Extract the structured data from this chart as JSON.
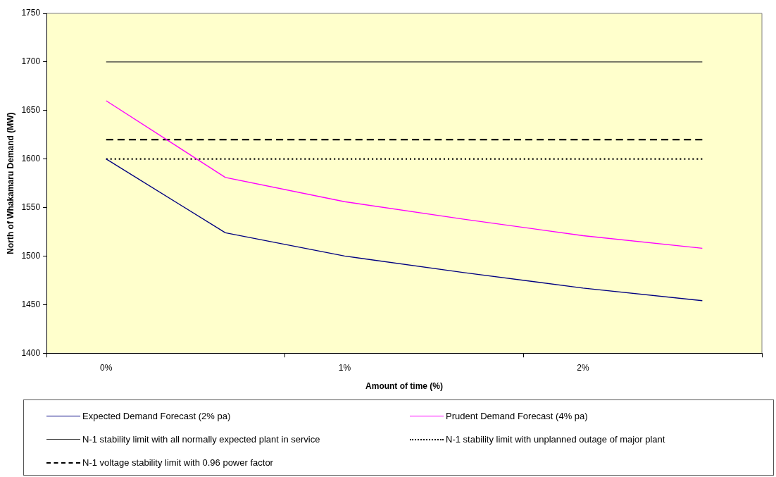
{
  "chart_data": {
    "type": "line",
    "xlabel": "Amount of time (%)",
    "ylabel": "North of Whakamaru Demand (MW)",
    "x": [
      0,
      0.5,
      1,
      1.5,
      2,
      2.5
    ],
    "xlim": [
      -0.25,
      2.75
    ],
    "xticks": [
      {
        "value": -0.25,
        "label": null
      },
      {
        "value": 0,
        "label": "0%"
      },
      {
        "value": 0.75,
        "label": null
      },
      {
        "value": 1,
        "label": "1%"
      },
      {
        "value": 1.75,
        "label": null
      },
      {
        "value": 2,
        "label": "2%"
      },
      {
        "value": 2.75,
        "label": null
      }
    ],
    "ylim": [
      1400,
      1750
    ],
    "yticks": [
      1400,
      1450,
      1500,
      1550,
      1600,
      1650,
      1700,
      1750
    ],
    "grid": false,
    "legend": "bottom",
    "marker": "none",
    "series": [
      {
        "name": "Expected Demand Forecast (2% pa)",
        "color": "#000080",
        "line_style": "solid",
        "values": [
          1600,
          1524,
          1500,
          1483,
          1467,
          1454
        ]
      },
      {
        "name": "Prudent Demand Forecast (4% pa)",
        "color": "#ff00ff",
        "line_style": "solid",
        "values": [
          1660,
          1581,
          1556,
          1538,
          1521,
          1508
        ]
      },
      {
        "name": "N-1 stability limit with all normally expected plant in service",
        "color": "#333333",
        "line_style": "solid",
        "values": [
          1700,
          1700,
          1700,
          1700,
          1700,
          1700
        ]
      },
      {
        "name": "N-1 stability limit with unplanned outage of major plant",
        "color": "#000000",
        "line_style": "dotted",
        "values": [
          1600,
          1600,
          1600,
          1600,
          1600,
          1600
        ]
      },
      {
        "name": "N-1 voltage stability limit with 0.96 power factor",
        "color": "#000000",
        "line_style": "dashed",
        "values": [
          1620,
          1620,
          1620,
          1620,
          1620,
          1620
        ]
      }
    ]
  }
}
